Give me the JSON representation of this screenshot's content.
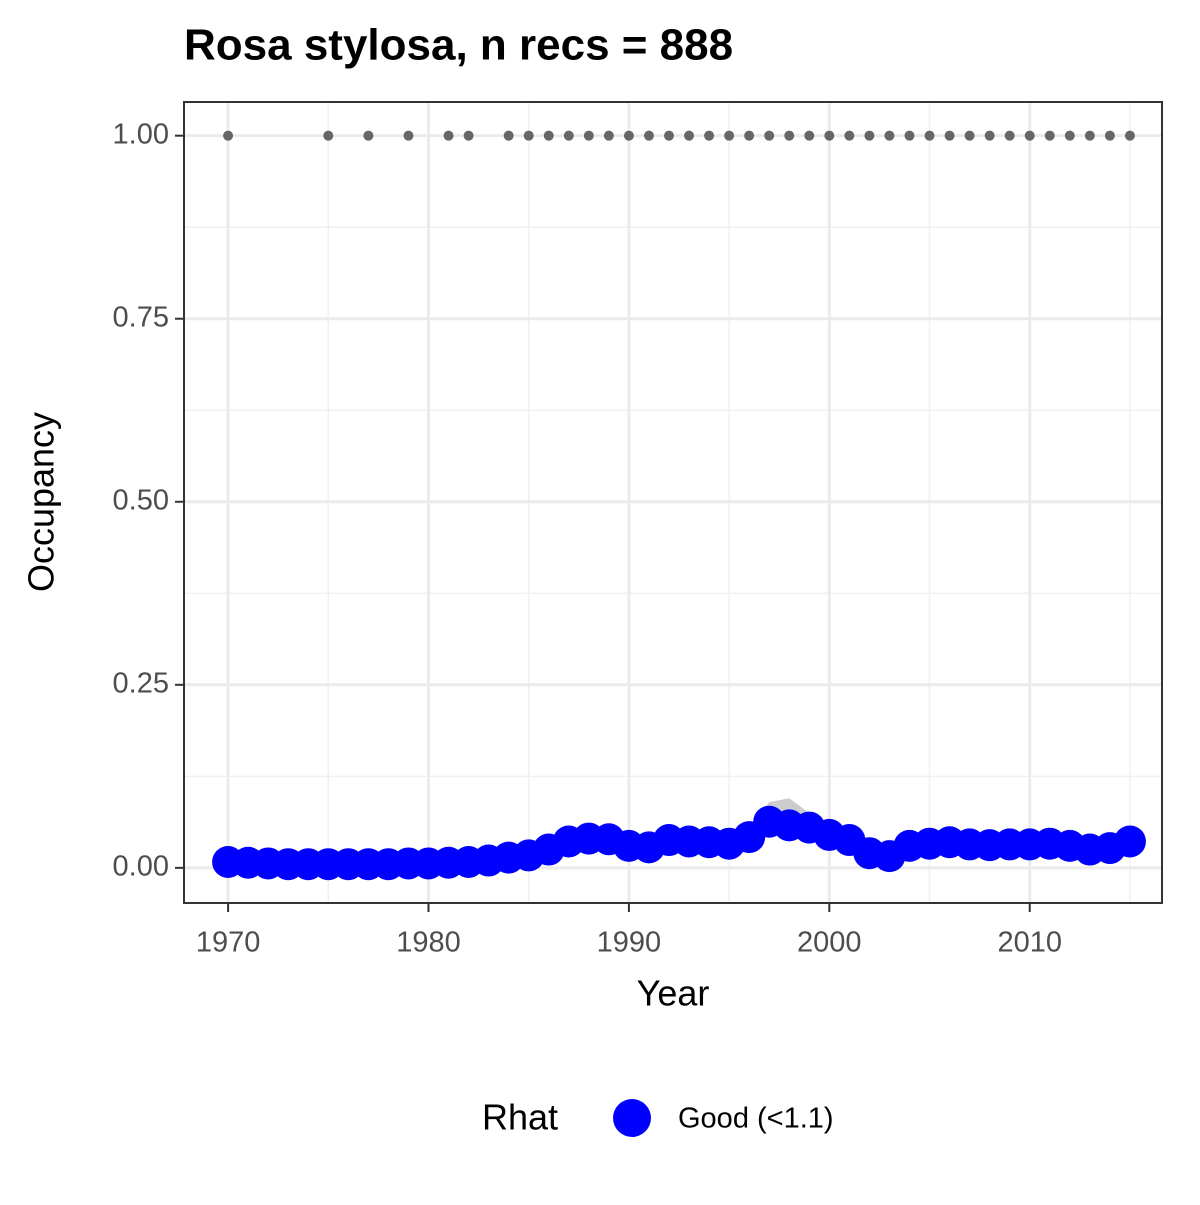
{
  "chart_data": {
    "type": "line",
    "title": "Rosa stylosa, n recs = 888",
    "x_label": "Year",
    "y_label": "Occupancy",
    "legend_title": "Rhat",
    "legend_position": "bottom",
    "grid": true,
    "x": [
      1970,
      1971,
      1972,
      1973,
      1974,
      1975,
      1976,
      1977,
      1978,
      1979,
      1980,
      1981,
      1982,
      1983,
      1984,
      1985,
      1986,
      1987,
      1988,
      1989,
      1990,
      1991,
      1992,
      1993,
      1994,
      1995,
      1996,
      1997,
      1998,
      1999,
      2000,
      2001,
      2002,
      2003,
      2004,
      2005,
      2006,
      2007,
      2008,
      2009,
      2010,
      2011,
      2012,
      2013,
      2014,
      2015
    ],
    "series": [
      {
        "name": "Good (<1.1)",
        "color": "#0000ff",
        "values": [
          0.008,
          0.007,
          0.006,
          0.005,
          0.005,
          0.005,
          0.005,
          0.005,
          0.005,
          0.006,
          0.006,
          0.007,
          0.008,
          0.01,
          0.014,
          0.017,
          0.025,
          0.036,
          0.04,
          0.039,
          0.03,
          0.028,
          0.038,
          0.036,
          0.035,
          0.033,
          0.042,
          0.063,
          0.058,
          0.055,
          0.045,
          0.038,
          0.02,
          0.016,
          0.03,
          0.033,
          0.035,
          0.032,
          0.031,
          0.032,
          0.032,
          0.033,
          0.03,
          0.025,
          0.027,
          0.036
        ],
        "lower": [
          0.005,
          0.004,
          0.003,
          0.002,
          0.002,
          0.002,
          0.002,
          0.002,
          0.002,
          0.003,
          0.003,
          0.004,
          0.005,
          0.007,
          0.01,
          0.013,
          0.02,
          0.031,
          0.035,
          0.034,
          0.025,
          0.023,
          0.033,
          0.031,
          0.03,
          0.028,
          0.036,
          0.056,
          0.052,
          0.049,
          0.04,
          0.033,
          0.016,
          0.012,
          0.026,
          0.029,
          0.031,
          0.028,
          0.027,
          0.028,
          0.028,
          0.029,
          0.026,
          0.021,
          0.023,
          0.031
        ],
        "upper": [
          0.011,
          0.01,
          0.009,
          0.008,
          0.008,
          0.008,
          0.008,
          0.008,
          0.008,
          0.009,
          0.009,
          0.01,
          0.011,
          0.013,
          0.018,
          0.021,
          0.03,
          0.041,
          0.045,
          0.044,
          0.035,
          0.033,
          0.046,
          0.047,
          0.046,
          0.044,
          0.052,
          0.09,
          0.095,
          0.075,
          0.052,
          0.043,
          0.024,
          0.02,
          0.034,
          0.037,
          0.039,
          0.036,
          0.035,
          0.036,
          0.036,
          0.037,
          0.034,
          0.029,
          0.031,
          0.041
        ]
      }
    ],
    "band_color": "#cccccc",
    "record_points": {
      "color": "#666666",
      "x": [
        1970,
        1975,
        1977,
        1979,
        1981,
        1982,
        1984,
        1985,
        1986,
        1987,
        1988,
        1989,
        1990,
        1991,
        1992,
        1993,
        1994,
        1995,
        1996,
        1997,
        1998,
        1999,
        2000,
        2001,
        2002,
        2003,
        2004,
        2005,
        2006,
        2007,
        2008,
        2009,
        2010,
        2011,
        2012,
        2013,
        2014,
        2015
      ],
      "values": [
        1,
        1,
        1,
        1,
        1,
        1,
        1,
        1,
        1,
        1,
        1,
        1,
        1,
        1,
        1,
        1,
        1,
        1,
        1,
        1,
        1,
        1,
        1,
        1,
        1,
        1,
        1,
        1,
        1,
        1,
        1,
        1,
        1,
        1,
        1,
        1,
        1,
        1
      ]
    },
    "xlim": [
      1967.8,
      2016.6
    ],
    "ylim": [
      -0.048,
      1.046
    ],
    "xticks": [
      1970,
      1980,
      1990,
      2000,
      2010
    ],
    "yticks": [
      {
        "value": 0,
        "label": "0.00"
      },
      {
        "value": 0.25,
        "label": "0.25"
      },
      {
        "value": 0.5,
        "label": "0.50"
      },
      {
        "value": 0.75,
        "label": "0.75"
      },
      {
        "value": 1,
        "label": "1.00"
      }
    ],
    "minor_xticks": [
      1975,
      1985,
      1995,
      2005,
      2015
    ],
    "minor_yticks": [
      0.125,
      0.375,
      0.625,
      0.875
    ]
  }
}
